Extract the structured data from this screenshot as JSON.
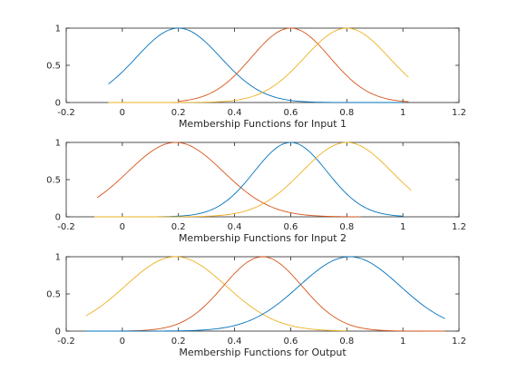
{
  "chart_data": [
    {
      "type": "line",
      "xlabel": "Membership Functions for Input 1",
      "xlim": [
        -0.2,
        1.2
      ],
      "ylim": [
        0,
        1
      ],
      "xticks": [
        "-0.2",
        "0",
        "0.2",
        "0.4",
        "0.6",
        "0.8",
        "1",
        "1.2"
      ],
      "yticks": [
        "0",
        "0.5",
        "1"
      ],
      "grid": false,
      "series": [
        {
          "color": "#0072BD",
          "xrange": [
            -0.05,
            1.0
          ],
          "center": 0.2,
          "sigma": 0.15
        },
        {
          "color": "#D95319",
          "xrange": [
            0.2,
            1.02
          ],
          "center": 0.6,
          "sigma": 0.14
        },
        {
          "color": "#EDB120",
          "xrange": [
            -0.05,
            1.02
          ],
          "center": 0.8,
          "sigma": 0.15
        }
      ]
    },
    {
      "type": "line",
      "xlabel": "Membership Functions for Input 2",
      "xlim": [
        -0.2,
        1.2
      ],
      "ylim": [
        0,
        1
      ],
      "xticks": [
        "-0.2",
        "0",
        "0.2",
        "0.4",
        "0.6",
        "0.8",
        "1",
        "1.2"
      ],
      "yticks": [
        "0",
        "0.5",
        "1"
      ],
      "grid": false,
      "series": [
        {
          "color": "#D95319",
          "xrange": [
            -0.09,
            0.85
          ],
          "center": 0.19,
          "sigma": 0.17
        },
        {
          "color": "#0072BD",
          "xrange": [
            -0.1,
            1.0
          ],
          "center": 0.6,
          "sigma": 0.13
        },
        {
          "color": "#EDB120",
          "xrange": [
            -0.1,
            1.03
          ],
          "center": 0.8,
          "sigma": 0.16
        }
      ]
    },
    {
      "type": "line",
      "xlabel": "Membership Functions for Output",
      "xlim": [
        -0.2,
        1.2
      ],
      "ylim": [
        0,
        1
      ],
      "xticks": [
        "-0.2",
        "0",
        "0.2",
        "0.4",
        "0.6",
        "0.8",
        "1",
        "1.2"
      ],
      "yticks": [
        "0",
        "0.5",
        "1"
      ],
      "grid": false,
      "series": [
        {
          "color": "#EDB120",
          "xrange": [
            -0.13,
            0.8
          ],
          "center": 0.19,
          "sigma": 0.18
        },
        {
          "color": "#D95319",
          "xrange": [
            -0.13,
            1.15
          ],
          "center": 0.5,
          "sigma": 0.14
        },
        {
          "color": "#0072BD",
          "xrange": [
            -0.13,
            1.15
          ],
          "center": 0.81,
          "sigma": 0.18
        }
      ]
    }
  ]
}
